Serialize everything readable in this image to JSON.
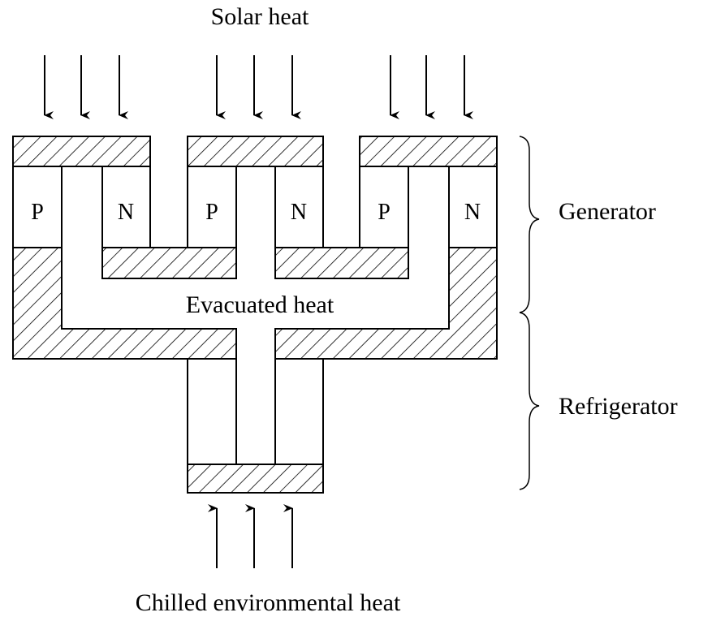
{
  "labels": {
    "top": "Solar heat",
    "middle": "Evacuated heat",
    "bottom": "Chilled environmental heat"
  },
  "modules": [
    {
      "p": "P",
      "n": "N"
    },
    {
      "p": "P",
      "n": "N"
    },
    {
      "p": "P",
      "n": "N"
    }
  ],
  "braces": [
    "Generator",
    "Refrigerator"
  ]
}
